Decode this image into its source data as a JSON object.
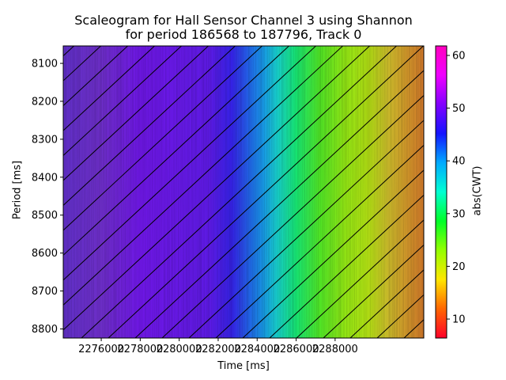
{
  "chart_data": {
    "type": "heatmap",
    "title_line1": "Scaleogram for Hall Sensor Channel 3 using Shannon",
    "title_line2": "for period 186568 to 187796, Track 0",
    "xlabel": "Time [ms]",
    "ylabel": "Period [ms]",
    "colorbar_label": "abs(CWT)",
    "colormap": "gist_rainbow",
    "x_ticks": [
      2276000,
      2278000,
      2280000,
      2282000,
      2284000,
      2286000,
      2288000
    ],
    "xlim": [
      2274050,
      2292550
    ],
    "y_ticks": [
      8100,
      8200,
      8300,
      8400,
      8500,
      8600,
      8700,
      8800
    ],
    "ylim": [
      8824,
      8054
    ],
    "colorbar_ticks": [
      10,
      20,
      30,
      40,
      50,
      60
    ],
    "colorbar_range": [
      6.4,
      61.8
    ],
    "hatch": "diagonal lines",
    "value_profile": {
      "x": [
        2274050,
        2276000,
        2278000,
        2280000,
        2281500,
        2282700,
        2283700,
        2284300,
        2285000,
        2286000,
        2287200,
        2288500,
        2289700,
        2290700,
        2291700,
        2292550
      ],
      "abs_cwt": [
        48,
        49,
        49.5,
        49,
        48.5,
        46,
        42,
        40,
        36,
        31,
        26,
        23,
        21,
        18,
        15,
        13
      ]
    }
  }
}
